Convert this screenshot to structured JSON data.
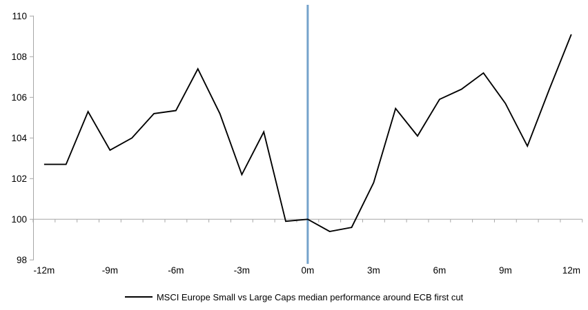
{
  "chart_data": {
    "type": "line",
    "title": "",
    "x": [
      -12,
      -11,
      -10,
      -9,
      -8,
      -7,
      -6,
      -5,
      -4,
      -3,
      -2,
      -1,
      0,
      1,
      2,
      3,
      4,
      5,
      6,
      7,
      8,
      9,
      10,
      11,
      12
    ],
    "series": [
      {
        "name": "MSCI Europe Small vs Large Caps median performance around ECB first cut",
        "color": "#000000",
        "values": [
          102.7,
          102.7,
          105.3,
          103.4,
          104,
          105.2,
          105.35,
          107.4,
          105.2,
          102.2,
          104.3,
          99.9,
          100,
          99.4,
          99.6,
          101.8,
          105.45,
          104.1,
          105.9,
          106.4,
          107.2,
          105.7,
          103.6,
          106.4,
          109.1
        ]
      }
    ],
    "xticks": [
      -12,
      -9,
      -6,
      -3,
      0,
      3,
      6,
      9,
      12
    ],
    "xtick_labels": [
      "-12m",
      "-9m",
      "-6m",
      "-3m",
      "0m",
      "3m",
      "6m",
      "9m",
      "12m"
    ],
    "yticks": [
      98,
      100,
      102,
      104,
      106,
      108,
      110
    ],
    "ytick_labels": [
      "98",
      "100",
      "102",
      "104",
      "106",
      "108",
      "110"
    ],
    "ylim": [
      98,
      110
    ],
    "xlim": [
      -12.5,
      12.5
    ],
    "baseline_y": 100,
    "event_line_x": 0,
    "event_line_color": "#74A2CB",
    "axis_color": "#A6A6A6",
    "grid": false,
    "legend_position": "bottom"
  }
}
